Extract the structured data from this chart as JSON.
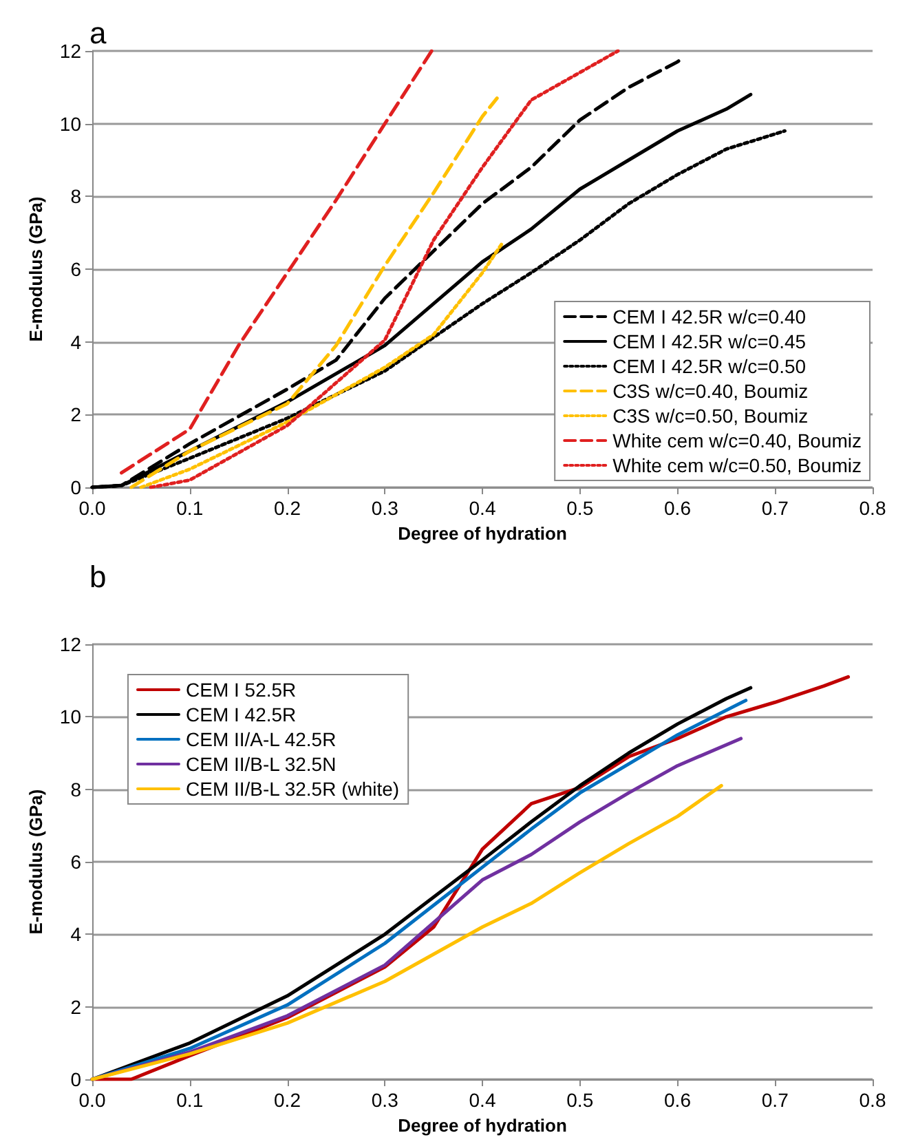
{
  "chart_data": [
    {
      "type": "line",
      "title": "a",
      "xlabel": "Degree of hydration",
      "ylabel": "E-modulus (GPa)",
      "xlim": [
        0,
        0.8
      ],
      "ylim": [
        0,
        12
      ],
      "xticks": [
        {
          "value": 0,
          "label": "0.0"
        },
        {
          "value": 0.1,
          "label": "0.1"
        },
        {
          "value": 0.2,
          "label": "0.2"
        },
        {
          "value": 0.3,
          "label": "0.3"
        },
        {
          "value": 0.4,
          "label": "0.4"
        },
        {
          "value": 0.5,
          "label": "0.5"
        },
        {
          "value": 0.6,
          "label": "0.6"
        },
        {
          "value": 0.7,
          "label": "0.7"
        },
        {
          "value": 0.8,
          "label": "0.8"
        }
      ],
      "yticks": [
        0,
        2,
        4,
        6,
        8,
        10,
        12
      ],
      "grid": "y",
      "legend": "bottom right",
      "marker": "none",
      "series": [
        {
          "name": "CEM I 42.5R w/c=0.40",
          "color": "#000000",
          "line_style": "dashed",
          "x": [
            0,
            0.03,
            0.1,
            0.2,
            0.25,
            0.3,
            0.4,
            0.45,
            0.5,
            0.55,
            0.6,
            0.605
          ],
          "values": [
            0,
            0.05,
            1.2,
            2.7,
            3.5,
            5.2,
            7.8,
            8.8,
            10.1,
            11.0,
            11.7,
            11.8
          ]
        },
        {
          "name": "CEM I 42.5R w/c=0.45",
          "color": "#000000",
          "line_style": "solid",
          "x": [
            0,
            0.03,
            0.1,
            0.2,
            0.3,
            0.4,
            0.45,
            0.5,
            0.55,
            0.6,
            0.65,
            0.675
          ],
          "values": [
            0,
            0.05,
            1.0,
            2.35,
            3.9,
            6.2,
            7.1,
            8.2,
            9.0,
            9.8,
            10.4,
            10.8
          ]
        },
        {
          "name": "CEM I 42.5R w/c=0.50",
          "color": "#000000",
          "line_style": "dotted",
          "x": [
            0,
            0.03,
            0.1,
            0.2,
            0.3,
            0.4,
            0.45,
            0.5,
            0.55,
            0.6,
            0.65,
            0.71
          ],
          "values": [
            0,
            0.05,
            0.8,
            1.9,
            3.2,
            5.05,
            5.9,
            6.8,
            7.8,
            8.6,
            9.3,
            9.8
          ]
        },
        {
          "name": "C3S w/c=0.40, Boumiz",
          "color": "#ffc000",
          "line_style": "dashed",
          "x": [
            0.04,
            0.1,
            0.2,
            0.25,
            0.3,
            0.35,
            0.4,
            0.415
          ],
          "values": [
            0,
            1.0,
            2.3,
            3.9,
            6.1,
            8.1,
            10.2,
            10.7
          ]
        },
        {
          "name": "C3S w/c=0.50, Boumiz",
          "color": "#ffc000",
          "line_style": "dotted",
          "x": [
            0.05,
            0.1,
            0.2,
            0.3,
            0.35,
            0.4,
            0.42
          ],
          "values": [
            0,
            0.5,
            1.8,
            3.3,
            4.2,
            5.9,
            6.7
          ]
        },
        {
          "name": "White cem w/c=0.40, Boumiz",
          "color": "#e02020",
          "line_style": "dashed",
          "x": [
            0.03,
            0.1,
            0.15,
            0.2,
            0.25,
            0.3,
            0.348
          ],
          "values": [
            0.4,
            1.6,
            3.9,
            5.9,
            7.9,
            10.0,
            12.0
          ]
        },
        {
          "name": "White cem w/c=0.50, Boumiz",
          "color": "#e02020",
          "line_style": "dotted",
          "x": [
            0.06,
            0.1,
            0.2,
            0.3,
            0.35,
            0.4,
            0.45,
            0.539
          ],
          "values": [
            0,
            0.2,
            1.7,
            4.05,
            6.8,
            8.8,
            10.65,
            12.0
          ]
        }
      ]
    },
    {
      "type": "line",
      "title": "b",
      "xlabel": "Degree of hydration",
      "ylabel": "E-modulus (GPa)",
      "xlim": [
        0,
        0.8
      ],
      "ylim": [
        0,
        12
      ],
      "xticks": [
        {
          "value": 0,
          "label": "0.0"
        },
        {
          "value": 0.1,
          "label": "0.1"
        },
        {
          "value": 0.2,
          "label": "0.2"
        },
        {
          "value": 0.3,
          "label": "0.3"
        },
        {
          "value": 0.4,
          "label": "0.4"
        },
        {
          "value": 0.5,
          "label": "0.5"
        },
        {
          "value": 0.6,
          "label": "0.6"
        },
        {
          "value": 0.7,
          "label": "0.7"
        },
        {
          "value": 0.8,
          "label": "0.8"
        }
      ],
      "yticks": [
        0,
        2,
        4,
        6,
        8,
        10,
        12
      ],
      "grid": "y",
      "legend": "top left",
      "marker": "none",
      "line_style": "solid",
      "series": [
        {
          "name": "CEM I 52.5R",
          "color": "#c00000",
          "x": [
            0,
            0.04,
            0.1,
            0.2,
            0.3,
            0.35,
            0.4,
            0.45,
            0.5,
            0.55,
            0.6,
            0.65,
            0.7,
            0.75,
            0.775
          ],
          "values": [
            0,
            0,
            0.65,
            1.7,
            3.1,
            4.2,
            6.35,
            7.6,
            8.05,
            8.9,
            9.4,
            10.0,
            10.4,
            10.85,
            11.1
          ]
        },
        {
          "name": "CEM I 42.5R",
          "color": "#000000",
          "x": [
            0,
            0.1,
            0.2,
            0.3,
            0.4,
            0.45,
            0.5,
            0.55,
            0.6,
            0.65,
            0.675
          ],
          "values": [
            0,
            1.0,
            2.3,
            4.0,
            6.05,
            7.1,
            8.1,
            9.0,
            9.8,
            10.5,
            10.8
          ]
        },
        {
          "name": "CEM II/A-L 42.5R",
          "color": "#0070c0",
          "x": [
            0,
            0.1,
            0.2,
            0.3,
            0.4,
            0.45,
            0.5,
            0.55,
            0.6,
            0.67
          ],
          "values": [
            0,
            0.85,
            2.05,
            3.75,
            5.85,
            6.9,
            7.9,
            8.7,
            9.5,
            10.45
          ]
        },
        {
          "name": "CEM II/B-L 32.5N",
          "color": "#7030a0",
          "x": [
            0,
            0.1,
            0.2,
            0.3,
            0.4,
            0.45,
            0.5,
            0.55,
            0.6,
            0.665
          ],
          "values": [
            0,
            0.75,
            1.75,
            3.15,
            5.5,
            6.2,
            7.1,
            7.9,
            8.65,
            9.4
          ]
        },
        {
          "name": "CEM II/B-L 32.5R (white)",
          "color": "#ffc000",
          "x": [
            0,
            0.1,
            0.2,
            0.3,
            0.4,
            0.45,
            0.5,
            0.55,
            0.6,
            0.645
          ],
          "values": [
            0,
            0.7,
            1.55,
            2.7,
            4.2,
            4.85,
            5.7,
            6.5,
            7.25,
            8.1
          ]
        }
      ]
    }
  ]
}
